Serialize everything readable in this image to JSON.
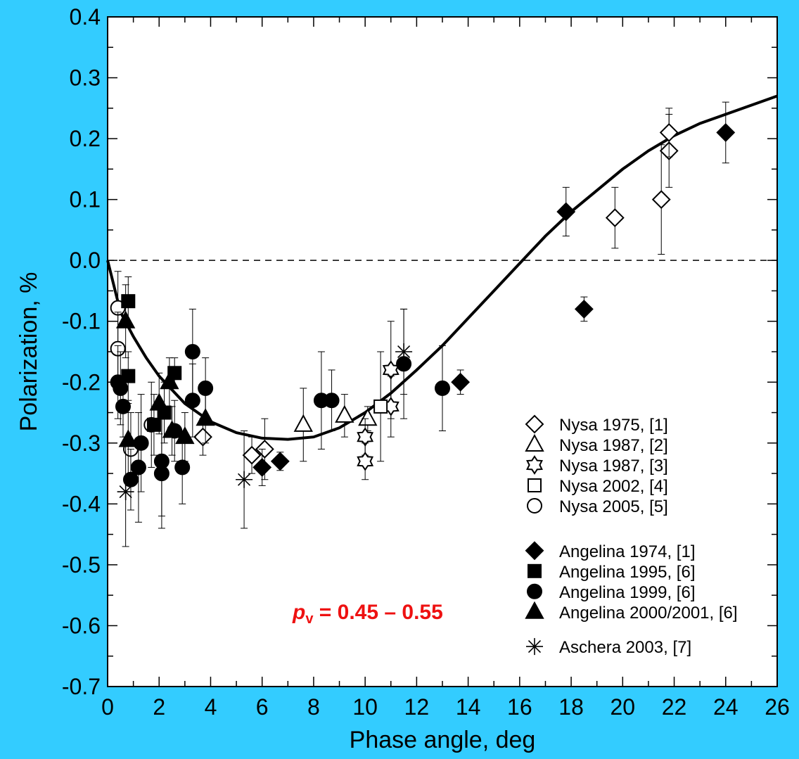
{
  "chart_data": {
    "type": "scatter",
    "title": "",
    "xlabel": "Phase angle, deg",
    "ylabel": "Polarization, %",
    "xlim": [
      0,
      26
    ],
    "ylim": [
      -0.7,
      0.4
    ],
    "x_ticks": [
      0,
      2,
      4,
      6,
      8,
      10,
      12,
      14,
      16,
      18,
      20,
      22,
      24,
      26
    ],
    "x_tick_labels": [
      "0",
      "2",
      "4",
      "6",
      "8",
      "10",
      "12",
      "14",
      "16",
      "18",
      "20",
      "22",
      "24",
      "26"
    ],
    "y_ticks": [
      0.4,
      0.3,
      0.2,
      0.1,
      0.0,
      -0.1,
      -0.2,
      -0.3,
      -0.4,
      -0.5,
      -0.6,
      -0.7
    ],
    "y_tick_labels": [
      "0.4",
      "0.3",
      "0.2",
      "0.1",
      "0.0",
      "-0.1",
      "-0.2",
      "-0.3",
      "-0.4",
      "-0.5",
      "-0.6",
      "-0.7"
    ],
    "grid": false,
    "legend_position": "bottom-right",
    "zero_line": "dashed",
    "annotation": {
      "prefix": "p",
      "subscript": "v",
      "text": " = 0.45 – 0.55",
      "color": "#ee1111"
    },
    "fit_curve": {
      "x": [
        0,
        0.5,
        1,
        1.5,
        2,
        3,
        4,
        5,
        6,
        7,
        8,
        9,
        10,
        11,
        12,
        13,
        14,
        15,
        16,
        17,
        18,
        19,
        20,
        21,
        22,
        23,
        24,
        25,
        26
      ],
      "y": [
        0.0,
        -0.085,
        -0.125,
        -0.16,
        -0.19,
        -0.235,
        -0.265,
        -0.283,
        -0.292,
        -0.294,
        -0.29,
        -0.275,
        -0.25,
        -0.218,
        -0.18,
        -0.14,
        -0.095,
        -0.05,
        -0.005,
        0.04,
        0.08,
        0.115,
        0.15,
        0.18,
        0.205,
        0.225,
        0.24,
        0.255,
        0.27
      ]
    },
    "series": [
      {
        "name": "Nysa 1975, [1]",
        "marker": "diamond",
        "filled": false,
        "points": [
          [
            3.7,
            -0.29,
            0.03
          ],
          [
            5.6,
            -0.32,
            0.03
          ],
          [
            6.1,
            -0.31,
            0.05
          ],
          [
            19.7,
            0.07,
            0.05
          ],
          [
            21.5,
            0.1,
            0.09
          ],
          [
            21.8,
            0.18,
            0.06
          ],
          [
            21.8,
            0.21,
            0.04
          ]
        ]
      },
      {
        "name": "Nysa 1987, [2]",
        "marker": "triangle",
        "filled": false,
        "points": [
          [
            7.6,
            -0.27,
            0.06
          ],
          [
            9.2,
            -0.255,
            0.035
          ],
          [
            10.1,
            -0.26,
            0.02
          ]
        ]
      },
      {
        "name": "Nysa 1987, [3]",
        "marker": "star",
        "filled": false,
        "points": [
          [
            10.0,
            -0.29,
            0.03
          ],
          [
            10.0,
            -0.33,
            0.03
          ],
          [
            11.0,
            -0.18,
            0.08
          ],
          [
            11.0,
            -0.24,
            0.05
          ]
        ]
      },
      {
        "name": "Nysa 2002, [4]",
        "marker": "square",
        "filled": false,
        "points": [
          [
            10.6,
            -0.24,
            0.09
          ]
        ]
      },
      {
        "name": "Nysa 2005, [5]",
        "marker": "circle",
        "filled": false,
        "points": [
          [
            0.4,
            -0.078,
            0.06
          ],
          [
            0.4,
            -0.145,
            0.06
          ],
          [
            0.9,
            -0.31,
            0.06
          ],
          [
            1.7,
            -0.27,
            0.07
          ]
        ]
      },
      {
        "name": "Angelina 1974, [1]",
        "marker": "diamond",
        "filled": true,
        "points": [
          [
            6.0,
            -0.34,
            0.03
          ],
          [
            6.7,
            -0.33,
            0.015
          ],
          [
            13.7,
            -0.2,
            0.02
          ],
          [
            17.8,
            0.08,
            0.04
          ],
          [
            18.5,
            -0.08,
            0.02
          ],
          [
            24.0,
            0.21,
            0.05
          ]
        ]
      },
      {
        "name": "Angelina 1995, [6]",
        "marker": "square",
        "filled": true,
        "points": [
          [
            0.8,
            -0.067,
            0.04
          ],
          [
            0.8,
            -0.19,
            0.04
          ],
          [
            1.8,
            -0.27,
            0.05
          ],
          [
            2.2,
            -0.25,
            0.05
          ],
          [
            2.6,
            -0.185,
            0.025
          ]
        ]
      },
      {
        "name": "Angelina 1999, [6]",
        "marker": "circle",
        "filled": true,
        "points": [
          [
            0.4,
            -0.2,
            0.06
          ],
          [
            0.5,
            -0.21,
            0.06
          ],
          [
            0.6,
            -0.24,
            0.05
          ],
          [
            0.9,
            -0.36,
            0.05
          ],
          [
            1.2,
            -0.34,
            0.09
          ],
          [
            1.3,
            -0.3,
            0.08
          ],
          [
            2.1,
            -0.33,
            0.09
          ],
          [
            2.1,
            -0.35,
            0.09
          ],
          [
            2.6,
            -0.28,
            0.05
          ],
          [
            2.9,
            -0.34,
            0.06
          ],
          [
            3.3,
            -0.15,
            0.07
          ],
          [
            3.3,
            -0.23,
            0.06
          ],
          [
            3.8,
            -0.21,
            0.05
          ],
          [
            8.3,
            -0.23,
            0.08
          ],
          [
            8.7,
            -0.23,
            0.05
          ],
          [
            11.5,
            -0.17,
            0.09
          ],
          [
            13.0,
            -0.21,
            0.07
          ]
        ]
      },
      {
        "name": "Angelina 2000/2001, [6]",
        "marker": "triangle",
        "filled": true,
        "points": [
          [
            0.7,
            -0.1,
            0.06
          ],
          [
            0.8,
            -0.295,
            0.06
          ],
          [
            2.0,
            -0.235,
            0.05
          ],
          [
            2.4,
            -0.2,
            0.04
          ],
          [
            2.5,
            -0.28,
            0.04
          ],
          [
            3.0,
            -0.29,
            0.04
          ],
          [
            3.8,
            -0.26,
            0.04
          ]
        ]
      },
      {
        "name": "Aschera 2003, [7]",
        "marker": "asterisk",
        "filled": false,
        "points": [
          [
            0.7,
            -0.38,
            0.09
          ],
          [
            5.3,
            -0.36,
            0.08
          ],
          [
            11.5,
            -0.15,
            0.07
          ]
        ]
      }
    ]
  }
}
